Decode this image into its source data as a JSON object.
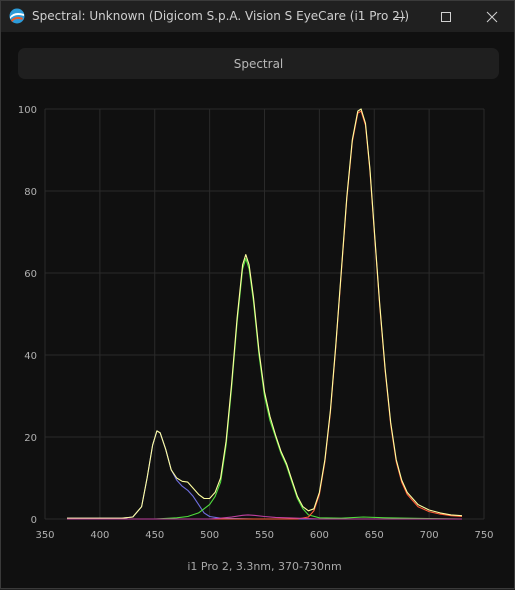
{
  "window": {
    "title": "Spectral: Unknown (Digicom S.p.A. Vision S EyeCare (i1 Pro 2))",
    "app_icon": "spectral-app-icon",
    "controls": [
      "minimize-icon",
      "maximize-icon",
      "close-icon"
    ]
  },
  "mode_button": {
    "label": "Spectral"
  },
  "colors": {
    "background": "#101010",
    "grid": "#2a2a2a",
    "blue": "#6f6fe0",
    "green": "#4fdd3c",
    "red": "#ff5a36",
    "white": "#ffffa0",
    "magenta": "#c040a0"
  },
  "chart_data": {
    "type": "line",
    "title": "",
    "xlabel": "i1 Pro 2, 3.3nm, 370-730nm",
    "ylabel": "",
    "xlim": [
      350,
      750
    ],
    "ylim": [
      0,
      100
    ],
    "xticks": [
      350,
      400,
      450,
      500,
      550,
      600,
      650,
      700,
      750
    ],
    "yticks": [
      0,
      20,
      40,
      60,
      80,
      100
    ],
    "grid": true,
    "legend": "none",
    "series": [
      {
        "color": "#6f6fe0",
        "points": [
          [
            370,
            0.2
          ],
          [
            420,
            0.2
          ],
          [
            430,
            0.5
          ],
          [
            438,
            3
          ],
          [
            443,
            10
          ],
          [
            448,
            18
          ],
          [
            452,
            21.5
          ],
          [
            455,
            21
          ],
          [
            460,
            17
          ],
          [
            465,
            12
          ],
          [
            470,
            9.5
          ],
          [
            475,
            8
          ],
          [
            480,
            7
          ],
          [
            485,
            5.5
          ],
          [
            490,
            3.5
          ],
          [
            495,
            1.5
          ],
          [
            500,
            0.6
          ],
          [
            510,
            0.2
          ],
          [
            540,
            0
          ],
          [
            730,
            0
          ]
        ]
      },
      {
        "color": "#4fdd3c",
        "points": [
          [
            370,
            0
          ],
          [
            450,
            0
          ],
          [
            470,
            0.3
          ],
          [
            480,
            0.6
          ],
          [
            490,
            1.5
          ],
          [
            500,
            3.5
          ],
          [
            505,
            5.5
          ],
          [
            510,
            9
          ],
          [
            515,
            18
          ],
          [
            520,
            32
          ],
          [
            525,
            48
          ],
          [
            530,
            61
          ],
          [
            533,
            63.5
          ],
          [
            536,
            61
          ],
          [
            540,
            53
          ],
          [
            545,
            40
          ],
          [
            550,
            30
          ],
          [
            555,
            24
          ],
          [
            560,
            20
          ],
          [
            565,
            16
          ],
          [
            570,
            13
          ],
          [
            575,
            9
          ],
          [
            580,
            5
          ],
          [
            585,
            2.5
          ],
          [
            590,
            1
          ],
          [
            600,
            0.3
          ],
          [
            620,
            0.2
          ],
          [
            640,
            0.5
          ],
          [
            660,
            0.3
          ],
          [
            700,
            0.1
          ],
          [
            730,
            0
          ]
        ]
      },
      {
        "color": "#ff5a36",
        "points": [
          [
            370,
            0
          ],
          [
            580,
            0
          ],
          [
            590,
            0.5
          ],
          [
            595,
            2
          ],
          [
            600,
            6
          ],
          [
            605,
            14
          ],
          [
            610,
            26
          ],
          [
            615,
            42
          ],
          [
            620,
            60
          ],
          [
            625,
            78
          ],
          [
            630,
            92
          ],
          [
            635,
            99
          ],
          [
            638,
            99.5
          ],
          [
            642,
            96
          ],
          [
            646,
            85
          ],
          [
            650,
            70
          ],
          [
            655,
            52
          ],
          [
            660,
            36
          ],
          [
            665,
            23
          ],
          [
            670,
            14
          ],
          [
            675,
            9
          ],
          [
            680,
            6
          ],
          [
            690,
            3
          ],
          [
            700,
            1.8
          ],
          [
            710,
            1.2
          ],
          [
            720,
            0.8
          ],
          [
            730,
            0.6
          ]
        ]
      },
      {
        "color": "#ffffa0",
        "points": [
          [
            370,
            0.2
          ],
          [
            420,
            0.2
          ],
          [
            430,
            0.5
          ],
          [
            438,
            3
          ],
          [
            443,
            10
          ],
          [
            448,
            18
          ],
          [
            452,
            21.5
          ],
          [
            455,
            21
          ],
          [
            460,
            17
          ],
          [
            465,
            12
          ],
          [
            470,
            10
          ],
          [
            475,
            9.2
          ],
          [
            480,
            9
          ],
          [
            485,
            7.5
          ],
          [
            490,
            6
          ],
          [
            495,
            5
          ],
          [
            500,
            5
          ],
          [
            505,
            6.5
          ],
          [
            510,
            10
          ],
          [
            515,
            19
          ],
          [
            520,
            33
          ],
          [
            525,
            49
          ],
          [
            530,
            62
          ],
          [
            533,
            64.5
          ],
          [
            536,
            62
          ],
          [
            540,
            54
          ],
          [
            545,
            41
          ],
          [
            550,
            31
          ],
          [
            555,
            25
          ],
          [
            560,
            20.5
          ],
          [
            565,
            16.5
          ],
          [
            570,
            13.5
          ],
          [
            575,
            9.5
          ],
          [
            580,
            5.5
          ],
          [
            585,
            3
          ],
          [
            590,
            2
          ],
          [
            595,
            2.5
          ],
          [
            600,
            6.5
          ],
          [
            605,
            14.5
          ],
          [
            610,
            26.5
          ],
          [
            615,
            42.5
          ],
          [
            620,
            60.5
          ],
          [
            625,
            78.5
          ],
          [
            630,
            92.5
          ],
          [
            635,
            99.5
          ],
          [
            638,
            100
          ],
          [
            642,
            96.5
          ],
          [
            646,
            85.5
          ],
          [
            650,
            70.5
          ],
          [
            655,
            52.5
          ],
          [
            660,
            36.5
          ],
          [
            665,
            23.5
          ],
          [
            670,
            14.5
          ],
          [
            675,
            9.5
          ],
          [
            680,
            6.5
          ],
          [
            690,
            3.5
          ],
          [
            700,
            2.2
          ],
          [
            710,
            1.5
          ],
          [
            720,
            1
          ],
          [
            730,
            0.8
          ]
        ]
      },
      {
        "color": "#c040a0",
        "points": [
          [
            370,
            0
          ],
          [
            500,
            0
          ],
          [
            510,
            0.2
          ],
          [
            520,
            0.5
          ],
          [
            530,
            0.9
          ],
          [
            535,
            1
          ],
          [
            540,
            0.9
          ],
          [
            550,
            0.6
          ],
          [
            560,
            0.4
          ],
          [
            580,
            0.2
          ],
          [
            600,
            0
          ],
          [
            730,
            0
          ]
        ]
      }
    ]
  }
}
